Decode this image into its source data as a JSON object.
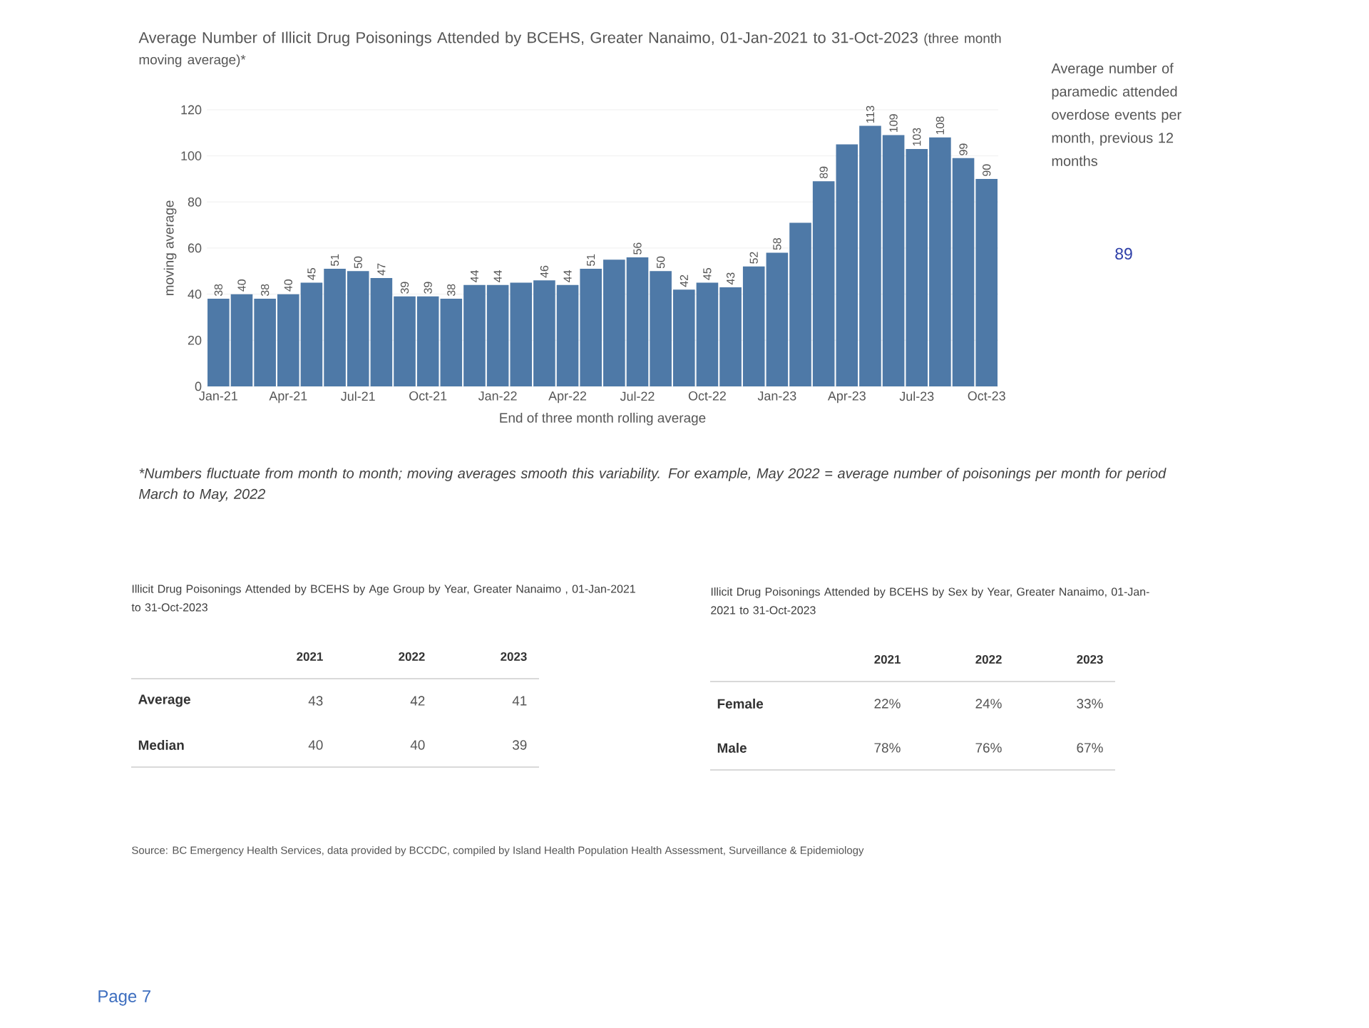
{
  "chart_data": [
    {
      "type": "bar",
      "title": "Average Number of Illicit Drug Poisonings Attended by BCEHS, Greater Nanaimo, 01-Jan-2021 to 31-Oct-2023",
      "subtitle": "(three month moving average)*",
      "xlabel": "End of three month rolling average",
      "ylabel": "moving average",
      "categories": [
        "Jan-21",
        null,
        null,
        "Apr-21",
        null,
        null,
        "Jul-21",
        null,
        null,
        "Oct-21",
        null,
        null,
        "Jan-22",
        null,
        null,
        "Apr-22",
        null,
        null,
        "Jul-22",
        null,
        null,
        "Oct-22",
        null,
        null,
        "Jan-23",
        null,
        null,
        "Apr-23",
        null,
        null,
        "Jul-23",
        null,
        null,
        "Oct-23"
      ],
      "values": [
        38,
        40,
        38,
        40,
        45,
        51,
        50,
        47,
        39,
        39,
        38,
        44,
        44,
        45,
        46,
        44,
        51,
        55,
        56,
        50,
        42,
        45,
        43,
        52,
        58,
        71,
        89,
        105,
        113,
        109,
        103,
        108,
        99,
        90
      ],
      "value_labels": [
        "38",
        "40",
        "38",
        "40",
        "45",
        "51",
        "50",
        "47",
        "39",
        "39",
        "38",
        "44",
        "44",
        null,
        "46",
        "44",
        "51",
        null,
        "56",
        "50",
        "42",
        "45",
        "43",
        "52",
        "58",
        null,
        "89",
        null,
        "113",
        "109",
        "103",
        "108",
        "99",
        "90"
      ],
      "color": "#4e79a7",
      "ylim": [
        0,
        120
      ],
      "yticks": [
        0,
        20,
        40,
        60,
        80,
        100,
        120
      ],
      "grid": "y",
      "annotations": [
        "Average number of paramedic attended overdose events per month, previous 12 months",
        "89",
        "*Numbers fluctuate from month to month; moving averages smooth this variability. For example, May 2022 = average number of poisonings per month for period March to May, 2022",
        "Source: BC Emergency Health Services, data provided by BCCDC, compiled by Island Health Population Health Assessment, Surveillance & Epidemiology",
        "Page 7"
      ]
    },
    {
      "type": "other",
      "title": "Illicit Drug Poisonings Attended by BCEHS by Age Group by Year, Greater Nanaimo , 01-Jan-2021 to 31-Oct-2023",
      "categories": [
        "2021",
        "2022",
        "2023"
      ],
      "y_categories": [
        "Average",
        "Median"
      ],
      "cell_labels": [
        [
          "43",
          "42",
          "41"
        ],
        [
          "40",
          "40",
          "39"
        ]
      ]
    },
    {
      "type": "other",
      "title": "Illicit Drug Poisonings Attended by BCEHS by Sex by Year, Greater Nanaimo, 01-Jan-2021 to 31-Oct-2023",
      "categories": [
        "2021",
        "2022",
        "2023"
      ],
      "y_categories": [
        "Female",
        "Male"
      ],
      "cell_labels": [
        [
          "22%",
          "24%",
          "33%"
        ],
        [
          "78%",
          "76%",
          "67%"
        ]
      ]
    }
  ]
}
